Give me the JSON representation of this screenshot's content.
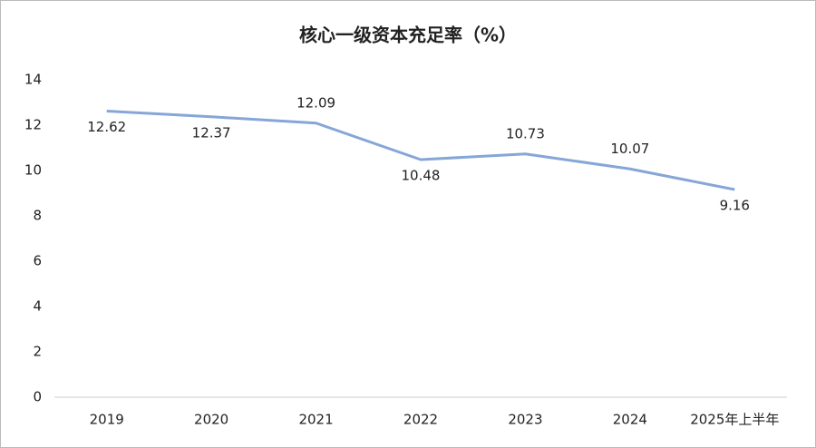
{
  "chart_data": {
    "type": "line",
    "title": "核心一级资本充足率（%）",
    "categories": [
      "2019",
      "2020",
      "2021",
      "2022",
      "2023",
      "2024",
      "2025年上半年"
    ],
    "values": [
      12.62,
      12.37,
      12.09,
      10.48,
      10.73,
      10.07,
      9.16
    ],
    "color": "#86a6d8",
    "ylim": [
      0,
      14
    ],
    "yticks": [
      0,
      2,
      4,
      6,
      8,
      10,
      12,
      14
    ],
    "grid": false
  }
}
